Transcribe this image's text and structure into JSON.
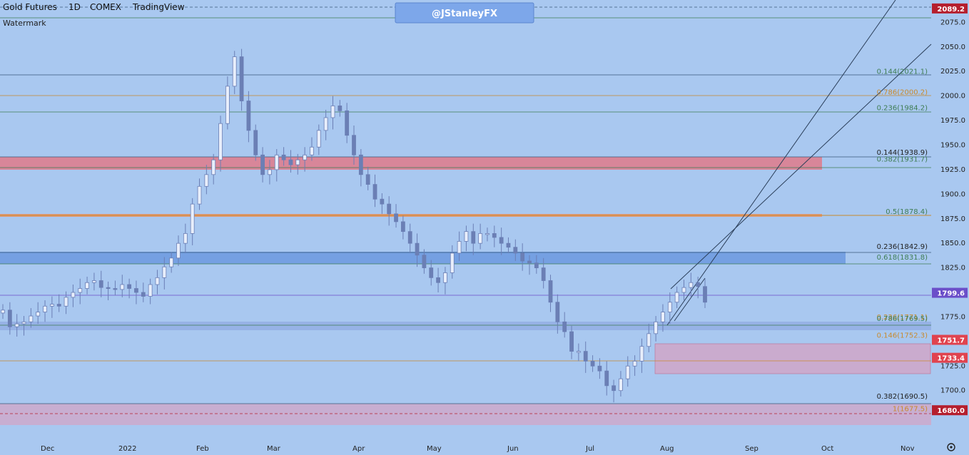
{
  "header": {
    "symbol": "Gold Futures",
    "interval": "1D",
    "exchange": "COMEX",
    "source": "TradingView",
    "watermark_label": "Watermark",
    "handle": "@JStanleyFX"
  },
  "price_axis": {
    "ticks": [
      "2075.0",
      "2050.0",
      "2025.0",
      "2000.0",
      "1975.0",
      "1950.0",
      "1925.0",
      "1900.0",
      "1875.0",
      "1850.0",
      "1825.0",
      "1775.0",
      "1750.0",
      "1725.0",
      "1700.0"
    ],
    "ylim": [
      1662,
      2092
    ]
  },
  "x_axis": {
    "labels": [
      "Dec",
      "2022",
      "Feb",
      "Mar",
      "Apr",
      "May",
      "Jun",
      "Jul",
      "Aug",
      "Sep",
      "Oct",
      "Nov"
    ]
  },
  "price_badges": [
    {
      "text": "2089.2",
      "price": 2089.2,
      "color": "#b51f2e"
    },
    {
      "text": "1799.6",
      "price": 1799.6,
      "color": "#6b4fc9"
    },
    {
      "text": "1751.7",
      "price": 1751.7,
      "color": "#e0434f"
    },
    {
      "text": "1733.4",
      "price": 1733.4,
      "color": "#e0434f"
    },
    {
      "text": "1680.0",
      "price": 1680.0,
      "color": "#b51f2e"
    }
  ],
  "fib_labels": [
    {
      "text": "0.144(2021.1)",
      "price": 2021.1,
      "color": "#3f7d54"
    },
    {
      "text": "0.786(2000.2)",
      "price": 2000.2,
      "color": "#c88a2e"
    },
    {
      "text": "0.236(1984.2)",
      "price": 1984.2,
      "color": "#3f7d54"
    },
    {
      "text": "0.144(1938.9)",
      "price": 1938.9,
      "color": "#222222"
    },
    {
      "text": "0.382(1931.7)",
      "price": 1931.7,
      "color": "#3f7d54"
    },
    {
      "text": "0.5(1878.4)",
      "price": 1878.4,
      "color": "#3f7d54"
    },
    {
      "text": "0.236(1842.9)",
      "price": 1842.9,
      "color": "#222222"
    },
    {
      "text": "0.618(1831.8)",
      "price": 1831.8,
      "color": "#3f7d54"
    },
    {
      "text": "0.236(1771.1)",
      "price": 1771.1,
      "color": "#c88a2e"
    },
    {
      "text": "0.786(1769.5)",
      "price": 1769.5,
      "color": "#3f7d54"
    },
    {
      "text": "0.146(1752.3)",
      "price": 1752.3,
      "color": "#c88a2e"
    },
    {
      "text": "0.382(1690.5)",
      "price": 1690.5,
      "color": "#222222"
    },
    {
      "text": "1(1677.5)",
      "price": 1677.5,
      "color": "#c88a2e"
    }
  ],
  "chart_data": {
    "type": "line",
    "title": "Gold Futures 1D COMEX",
    "xlabel": "",
    "ylabel": "",
    "ylim": [
      1662,
      2092
    ],
    "grid": false,
    "series": [
      {
        "values": [
          1782,
          1765,
          1768,
          1770,
          1776,
          1780,
          1786,
          1788,
          1786,
          1795,
          1800,
          1804,
          1810,
          1812,
          1805,
          1804,
          1803,
          1808,
          1804,
          1800,
          1796,
          1808,
          1815,
          1826,
          1835,
          1850,
          1860,
          1890,
          1908,
          1920,
          1935,
          1972,
          2010,
          2040,
          1995,
          1965,
          1940,
          1920,
          1925,
          1940,
          1935,
          1930,
          1935,
          1940,
          1948,
          1965,
          1978,
          1990,
          1985,
          1960,
          1940,
          1920,
          1910,
          1895,
          1890,
          1880,
          1872,
          1862,
          1850,
          1838,
          1825,
          1815,
          1810,
          1820,
          1840,
          1852,
          1862,
          1850,
          1860,
          1860,
          1856,
          1850,
          1846,
          1840,
          1832,
          1830,
          1825,
          1812,
          1790,
          1770,
          1760,
          1740,
          1740,
          1730,
          1725,
          1720,
          1705,
          1700,
          1712,
          1725,
          1730,
          1745,
          1758,
          1770,
          1780,
          1790,
          1800,
          1805,
          1810,
          1806,
          1790
        ]
      }
    ]
  },
  "colors": {
    "background": "#a9c8f0",
    "red_zone": "#e07a8a",
    "blue_zone": "#5f8fdc",
    "candle": "#6b7fb5"
  }
}
